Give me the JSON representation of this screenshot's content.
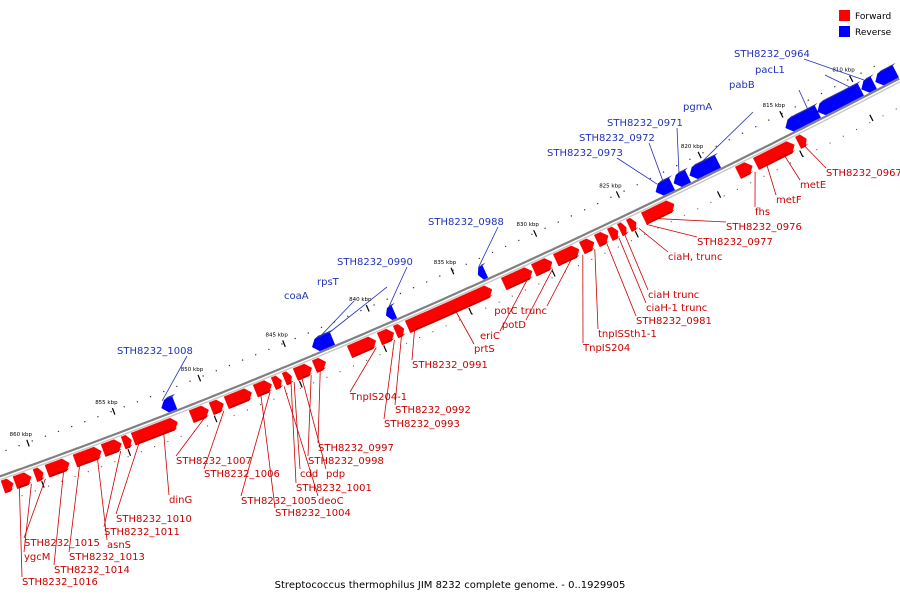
{
  "caption": "Streptococcus thermophilus JIM 8232 complete genome. - 0..1929905",
  "legend": [
    {
      "label": "Forward",
      "color": "#ff0000"
    },
    {
      "label": "Reverse",
      "color": "#0000ff"
    }
  ],
  "colors": {
    "forward": "#ff0000",
    "reverse": "#0000ff",
    "backbone": "#808080",
    "label_forward": "#cc0000",
    "label_reverse": "#2233bb"
  },
  "scale_labels": [
    "810 kbp",
    "815 kbp",
    "820 kbp",
    "825 kbp",
    "830 kbp",
    "835 kbp",
    "840 kbp",
    "845 kbp",
    "850 kbp",
    "855 kbp",
    "860 kbp"
  ],
  "forward_labels": [
    "STH8232_0967",
    "metE",
    "metF",
    "fhs",
    "STH8232_0976",
    "STH8232_0977",
    "ciaH, trunc",
    "ciaH trunc",
    "ciaH-1 trunc",
    "STH8232_0981",
    "tnpISSth1-1",
    "TnpIS204",
    "potC trunc",
    "potD",
    "eriC",
    "prtS",
    "STH8232_0991",
    "TnpIS204-1",
    "STH8232_0992",
    "STH8232_0993",
    "STH8232_0997",
    "STH8232_0998",
    "pdp",
    "cdd",
    "STH8232_1001",
    "deoC",
    "STH8232_1005",
    "STH8232_1004",
    "STH8232_1006",
    "STH8232_1007",
    "dinG",
    "STH8232_1010",
    "STH8232_1011",
    "asnS",
    "STH8232_1013",
    "STH8232_1014",
    "STH8232_1015",
    "ygcM",
    "STH8232_1016"
  ],
  "reverse_labels": [
    "STH8232_0964",
    "pacL1",
    "pabB",
    "pgmA",
    "STH8232_0971",
    "STH8232_0972",
    "STH8232_0973",
    "STH8232_0988",
    "STH8232_0990",
    "rpsT",
    "coaA",
    "STH8232_1008"
  ]
}
